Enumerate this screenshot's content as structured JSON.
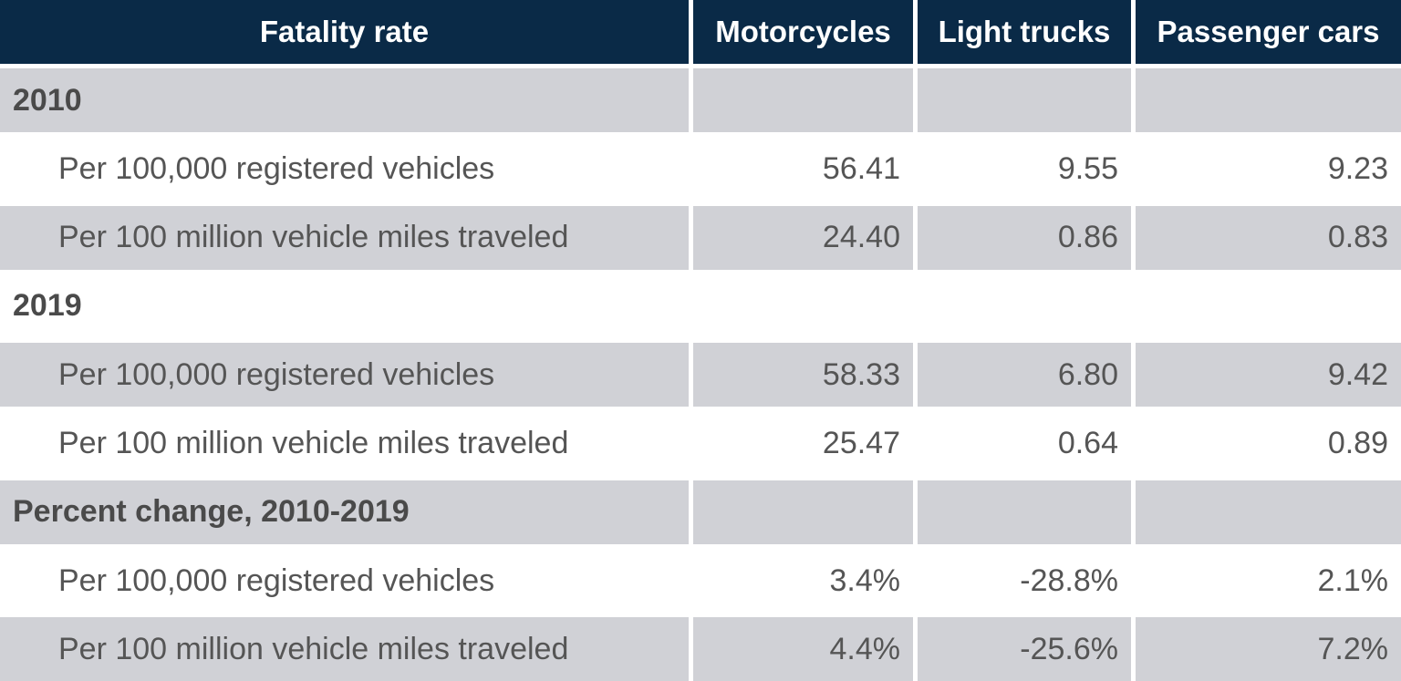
{
  "table": {
    "header": [
      "Fatality rate",
      "Motorcycles",
      "Light trucks",
      "Passenger cars"
    ],
    "rows": [
      [
        "2010"
      ],
      [
        "Per 100,000 registered vehicles",
        "56.41",
        "9.55",
        "9.23"
      ],
      [
        "Per 100 million vehicle miles traveled",
        "24.40",
        "0.86",
        "0.83"
      ],
      [
        "2019"
      ],
      [
        "Per 100,000 registered vehicles",
        "58.33",
        "6.80",
        "9.42"
      ],
      [
        "Per 100 million vehicle miles traveled",
        "25.47",
        "0.64",
        "0.89"
      ],
      [
        "Percent change, 2010-2019"
      ],
      [
        "Per 100,000 registered vehicles",
        "3.4%",
        "-28.8%",
        "2.1%"
      ],
      [
        "Per 100 million vehicle miles traveled",
        "4.4%",
        "-25.6%",
        "7.2%"
      ]
    ]
  }
}
